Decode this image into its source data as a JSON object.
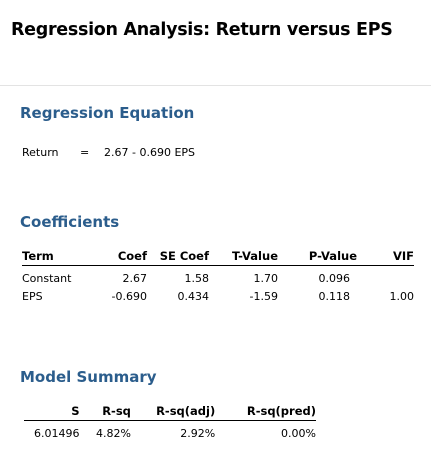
{
  "title": "Regression Analysis: Return versus EPS",
  "regression_equation": {
    "heading": "Regression Equation",
    "response": "Return",
    "equals": "=",
    "formula": "2.67 - 0.690 EPS"
  },
  "coefficients": {
    "heading": "Coefficients",
    "columns": [
      "Term",
      "Coef",
      "SE Coef",
      "T-Value",
      "P-Value",
      "VIF"
    ],
    "rows": [
      [
        "Constant",
        "2.67",
        "1.58",
        "1.70",
        "0.096",
        ""
      ],
      [
        "EPS",
        "-0.690",
        "0.434",
        "-1.59",
        "0.118",
        "1.00"
      ]
    ]
  },
  "model_summary": {
    "heading": "Model Summary",
    "columns": [
      "S",
      "R-sq",
      "R-sq(adj)",
      "R-sq(pred)"
    ],
    "rows": [
      [
        "6.01496",
        "4.82%",
        "2.92%",
        "0.00%"
      ]
    ]
  },
  "colors": {
    "heading": "#2b5d8c",
    "text": "#000000",
    "divider": "#e3e3e3"
  }
}
